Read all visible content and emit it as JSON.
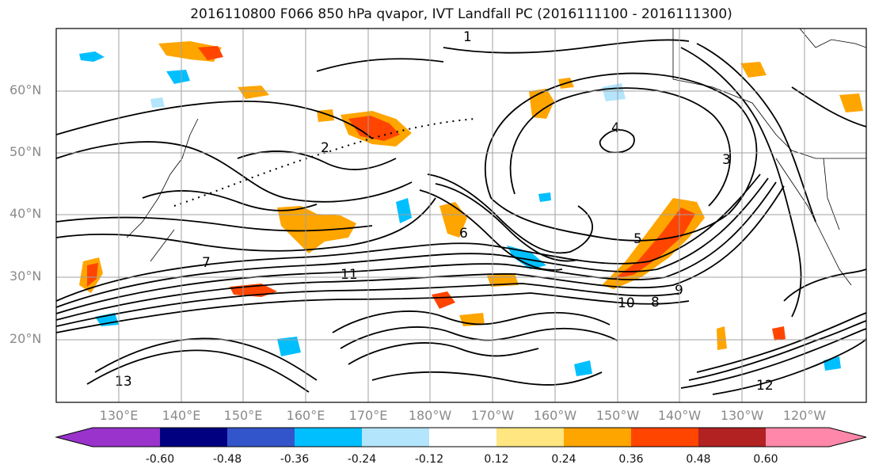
{
  "title": "2016110800 F066 850 hPa qvapor, IVT Landfall PC (2016111100 - 2016111300)",
  "lat_labels": [
    "60°N",
    "50°N",
    "40°N",
    "30°N",
    "20°N"
  ],
  "lon_labels": [
    "130°E",
    "140°E",
    "150°E",
    "160°E",
    "170°E",
    "180°W",
    "170°W",
    "160°W",
    "150°W",
    "140°W",
    "130°W",
    "120°W"
  ],
  "colorbar": {
    "colors": [
      "#9933cc",
      "#000080",
      "#3355cc",
      "#00bfff",
      "#b3e5fc",
      "#ffffff",
      "#ffe680",
      "#ffa500",
      "#ff4500",
      "#b22222",
      "#ff88aa"
    ],
    "tick_labels": [
      "-0.60",
      "-0.48",
      "-0.36",
      "-0.24",
      "-0.12",
      "0.12",
      "0.24",
      "0.36",
      "0.48",
      "0.60"
    ]
  },
  "contour_labels": [
    "1",
    "2",
    "3",
    "4",
    "5",
    "6",
    "7",
    "8",
    "9",
    "10",
    "11",
    "12",
    "13"
  ],
  "colors": {
    "contour": "#000000",
    "gridline": "#a0a0a0",
    "coast": "#000000"
  }
}
